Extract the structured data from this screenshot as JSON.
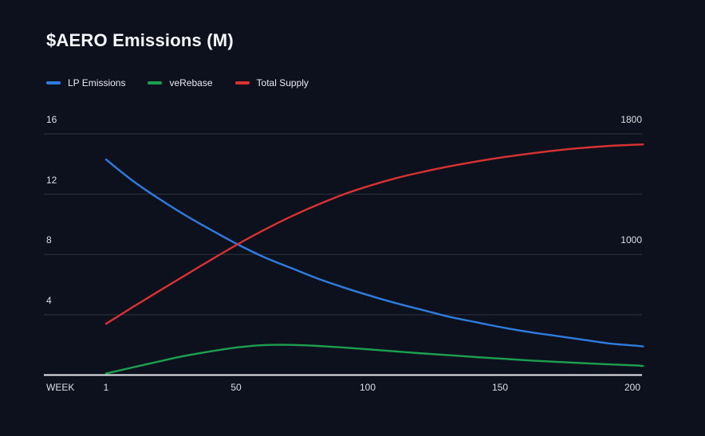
{
  "colors": {
    "background": "#0d111e",
    "gridline": "rgba(255,255,255,0.14)",
    "axis_line": "#e7e9ee",
    "title_text": "#f7f8fb",
    "tick_text": "#dcdfe5",
    "lp_emissions": "#2f7ce0",
    "ve_rebase": "#1ca04e",
    "total_supply": "#d93232"
  },
  "chart_data": {
    "type": "line",
    "title": "$AERO Emissions (M)",
    "x_label": "WEEK",
    "grid": true,
    "legend_position": "top-left",
    "x_range": [
      1,
      204
    ],
    "left_axis_range": [
      0,
      17.5
    ],
    "right_axis_mapping": "right = left * 100 + 200 (1000 aligns with 8, 1800 aligns with 16)",
    "x_ticks": [
      {
        "label": "1",
        "value": 1
      },
      {
        "label": "50",
        "value": 50
      },
      {
        "label": "100",
        "value": 100
      },
      {
        "label": "150",
        "value": 150
      },
      {
        "label": "200",
        "value": 200
      }
    ],
    "left_ticks": [
      {
        "label": "16",
        "value": 16
      },
      {
        "label": "12",
        "value": 12
      },
      {
        "label": "8",
        "value": 8
      },
      {
        "label": "4",
        "value": 4
      }
    ],
    "right_ticks": [
      {
        "label": "1800",
        "value": 1800
      },
      {
        "label": "1000",
        "value": 1000
      }
    ],
    "x": [
      1,
      11,
      21,
      31,
      41,
      51,
      61,
      71,
      81,
      91,
      101,
      111,
      121,
      131,
      141,
      151,
      161,
      171,
      181,
      191,
      201,
      204
    ],
    "series": [
      {
        "name": "LP Emissions",
        "axis": "left",
        "color": "#2f7ce0",
        "values": [
          14.3,
          12.9,
          11.7,
          10.6,
          9.6,
          8.65,
          7.8,
          7.1,
          6.4,
          5.8,
          5.25,
          4.75,
          4.3,
          3.85,
          3.5,
          3.15,
          2.85,
          2.6,
          2.35,
          2.1,
          1.95,
          1.9
        ]
      },
      {
        "name": "veRebase",
        "axis": "left",
        "color": "#1ca04e",
        "values": [
          0.1,
          0.5,
          0.9,
          1.28,
          1.58,
          1.84,
          1.99,
          2.0,
          1.93,
          1.82,
          1.69,
          1.56,
          1.43,
          1.31,
          1.19,
          1.08,
          0.97,
          0.88,
          0.79,
          0.71,
          0.64,
          0.6
        ]
      },
      {
        "name": "Total Supply",
        "axis": "right",
        "color": "#d93232",
        "values": [
          540,
          650,
          757,
          863,
          968,
          1070,
          1165,
          1252,
          1330,
          1400,
          1458,
          1508,
          1549,
          1585,
          1617,
          1645,
          1669,
          1690,
          1707,
          1720,
          1728,
          1730
        ]
      }
    ]
  }
}
